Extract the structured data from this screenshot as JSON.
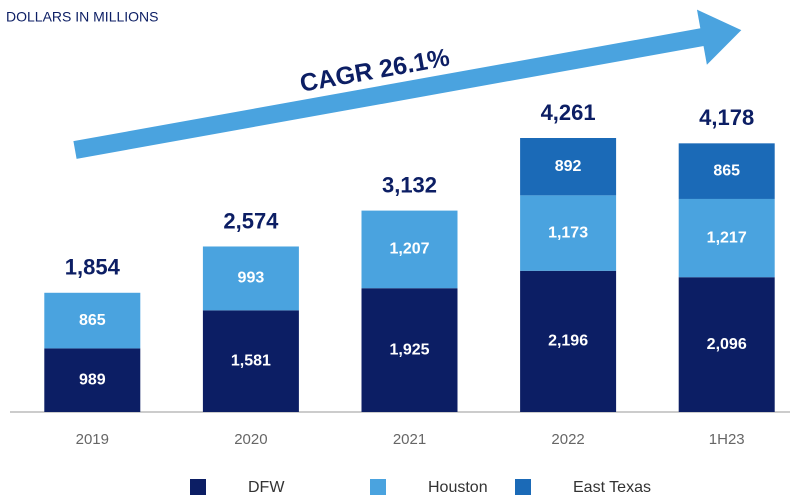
{
  "chart_data": {
    "type": "stacked_bar",
    "subtitle": "DOLLARS IN MILLIONS",
    "annotation": "CAGR 26.1%",
    "categories": [
      "2019",
      "2020",
      "2021",
      "2022",
      "1H23"
    ],
    "series": [
      {
        "name": "DFW",
        "color": "#0c1e64",
        "values": [
          989,
          1581,
          1925,
          2196,
          2096
        ],
        "value_labels": [
          "989",
          "1,581",
          "1,925",
          "2,196",
          "2,096"
        ]
      },
      {
        "name": "Houston",
        "color": "#4aa3df",
        "values": [
          865,
          993,
          1207,
          1173,
          1217
        ],
        "value_labels": [
          "865",
          "993",
          "1,207",
          "1,173",
          "1,217"
        ]
      },
      {
        "name": "East Texas",
        "color": "#1b6ab7",
        "values": [
          null,
          null,
          null,
          892,
          865
        ],
        "value_labels": [
          null,
          null,
          null,
          "892",
          "865"
        ]
      }
    ],
    "totals": [
      1854,
      2574,
      3132,
      4261,
      4178
    ],
    "total_labels": [
      "1,854",
      "2,574",
      "3,132",
      "4,261",
      "4,178"
    ]
  }
}
